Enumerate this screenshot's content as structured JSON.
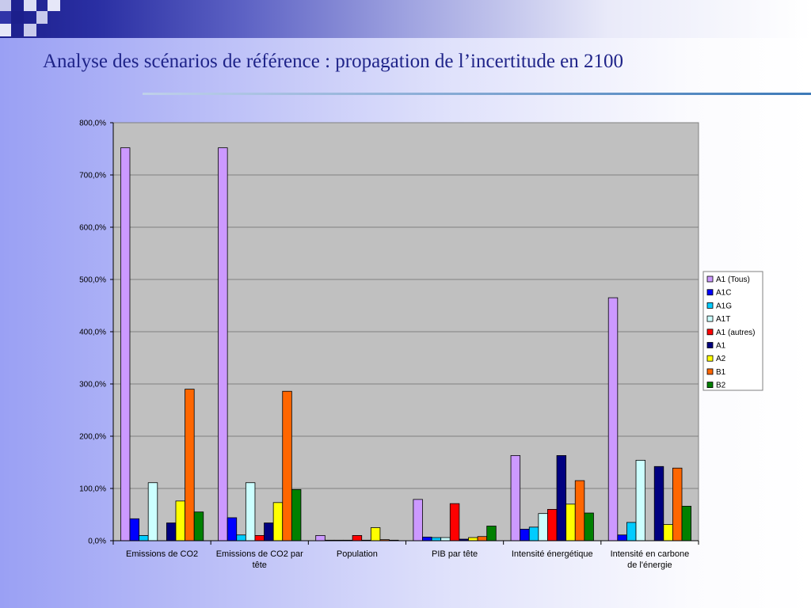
{
  "slide": {
    "title": "Analyse des scénarios de référence : propagation de l’incertitude en 2100"
  },
  "colors": {
    "plot_background": "#c0c0c0",
    "band_dark": "#1c1f8c"
  },
  "chart_data": {
    "type": "bar",
    "title": "",
    "xlabel": "",
    "ylabel": "",
    "ylim": [
      0,
      800
    ],
    "ytick_step": 100,
    "ytick_labels": [
      "0,0%",
      "100,0%",
      "200,0%",
      "300,0%",
      "400,0%",
      "500,0%",
      "600,0%",
      "700,0%",
      "800,0%"
    ],
    "grid": true,
    "legend_position": "right",
    "categories": [
      [
        "Emissions de CO2"
      ],
      [
        "Emissions de CO2 par",
        "tête"
      ],
      [
        "Population"
      ],
      [
        "PIB par tête"
      ],
      [
        "Intensité énergétique"
      ],
      [
        "Intensité en carbone",
        "de l'énergie"
      ]
    ],
    "series": [
      {
        "name": "A1 (Tous)",
        "color": "#cc99ff",
        "values": [
          752,
          752,
          10,
          79,
          163,
          465
        ]
      },
      {
        "name": "A1C",
        "color": "#0000ff",
        "values": [
          42,
          44,
          1,
          7,
          22,
          11
        ]
      },
      {
        "name": "A1G",
        "color": "#00ccff",
        "values": [
          10,
          11,
          1,
          6,
          26,
          35
        ]
      },
      {
        "name": "A1T",
        "color": "#ccffff",
        "values": [
          111,
          111,
          1,
          6,
          52,
          154
        ]
      },
      {
        "name": "A1 (autres)",
        "color": "#ff0000",
        "values": [
          0,
          10,
          10,
          71,
          60,
          0
        ]
      },
      {
        "name": "A1",
        "color": "#000080",
        "values": [
          34,
          34,
          1,
          3,
          163,
          142
        ]
      },
      {
        "name": "A2",
        "color": "#ffff00",
        "values": [
          76,
          73,
          25,
          6,
          70,
          31
        ]
      },
      {
        "name": "B1",
        "color": "#ff6600",
        "values": [
          290,
          286,
          2,
          8,
          115,
          139
        ]
      },
      {
        "name": "B2",
        "color": "#008000",
        "values": [
          55,
          98,
          1,
          28,
          53,
          66
        ]
      }
    ]
  }
}
